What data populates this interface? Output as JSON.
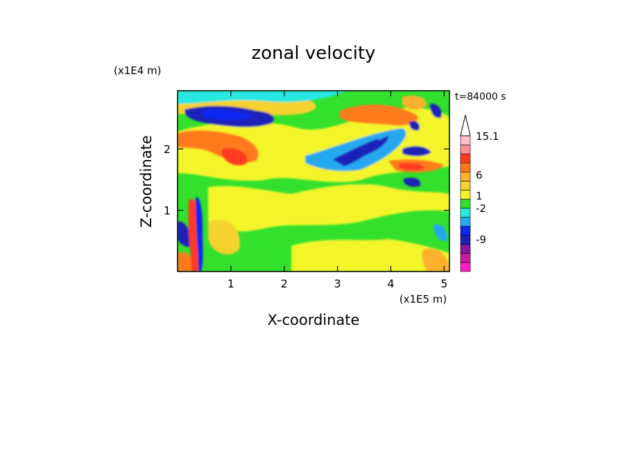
{
  "chart_data": {
    "type": "heatmap",
    "title": "zonal velocity",
    "xlabel": "X-coordinate",
    "ylabel": "Z-coordinate",
    "x_unit": "(x1E5 m)",
    "y_unit": "(x1E4 m)",
    "time_label": "t=84000 s",
    "xlim": [
      0,
      5.1
    ],
    "ylim": [
      0,
      2.95
    ],
    "x_ticks": [
      1,
      2,
      3,
      4,
      5
    ],
    "y_ticks": [
      1,
      2
    ],
    "colorbar": {
      "levels": [
        -15,
        -12,
        -9,
        -6,
        -4,
        -2,
        -1,
        0,
        1,
        2,
        4,
        6,
        9,
        12,
        15.1
      ],
      "colors": [
        "#ff1fc3",
        "#c81e9b",
        "#8a149e",
        "#1a20b8",
        "#0a28f0",
        "#27a8f0",
        "#26e8e0",
        "#33e02c",
        "#f3f52b",
        "#f5d22d",
        "#ffb12f",
        "#ff7a1a",
        "#ff3a23",
        "#ff8f8f",
        "#ffc2c8"
      ],
      "tick_labels": [
        "15.1",
        "6",
        "1",
        "-2",
        "-9"
      ]
    },
    "regions": [
      {
        "x": [
          0.12,
          1.6
        ],
        "z": [
          2.35,
          2.62
        ],
        "value": -10
      },
      {
        "x": [
          3.0,
          3.9
        ],
        "z": [
          1.7,
          2.2
        ],
        "value": -8
      },
      {
        "x": [
          4.15,
          4.75
        ],
        "z": [
          1.85,
          2.05
        ],
        "value": -9
      },
      {
        "x": [
          4.25,
          4.7
        ],
        "z": [
          1.2,
          1.45
        ],
        "value": -9
      },
      {
        "x": [
          0.0,
          0.35
        ],
        "z": [
          0.4,
          0.9
        ],
        "value": -6
      },
      {
        "x": [
          2.8,
          4.2
        ],
        "z": [
          2.45,
          2.85
        ],
        "value": 6
      },
      {
        "x": [
          4.2,
          5.0
        ],
        "z": [
          1.55,
          1.75
        ],
        "value": 9
      },
      {
        "x": [
          0.0,
          1.3
        ],
        "z": [
          1.8,
          2.15
        ],
        "value": 5
      },
      {
        "x": [
          0.5,
          2.0
        ],
        "z": [
          0.9,
          1.6
        ],
        "value": 1.5
      },
      {
        "x": [
          2.2,
          4.1
        ],
        "z": [
          1.05,
          1.55
        ],
        "value": 1.5
      },
      {
        "x": [
          0.0,
          5.1
        ],
        "z": [
          0.0,
          0.6
        ],
        "value": 0.5
      }
    ]
  }
}
